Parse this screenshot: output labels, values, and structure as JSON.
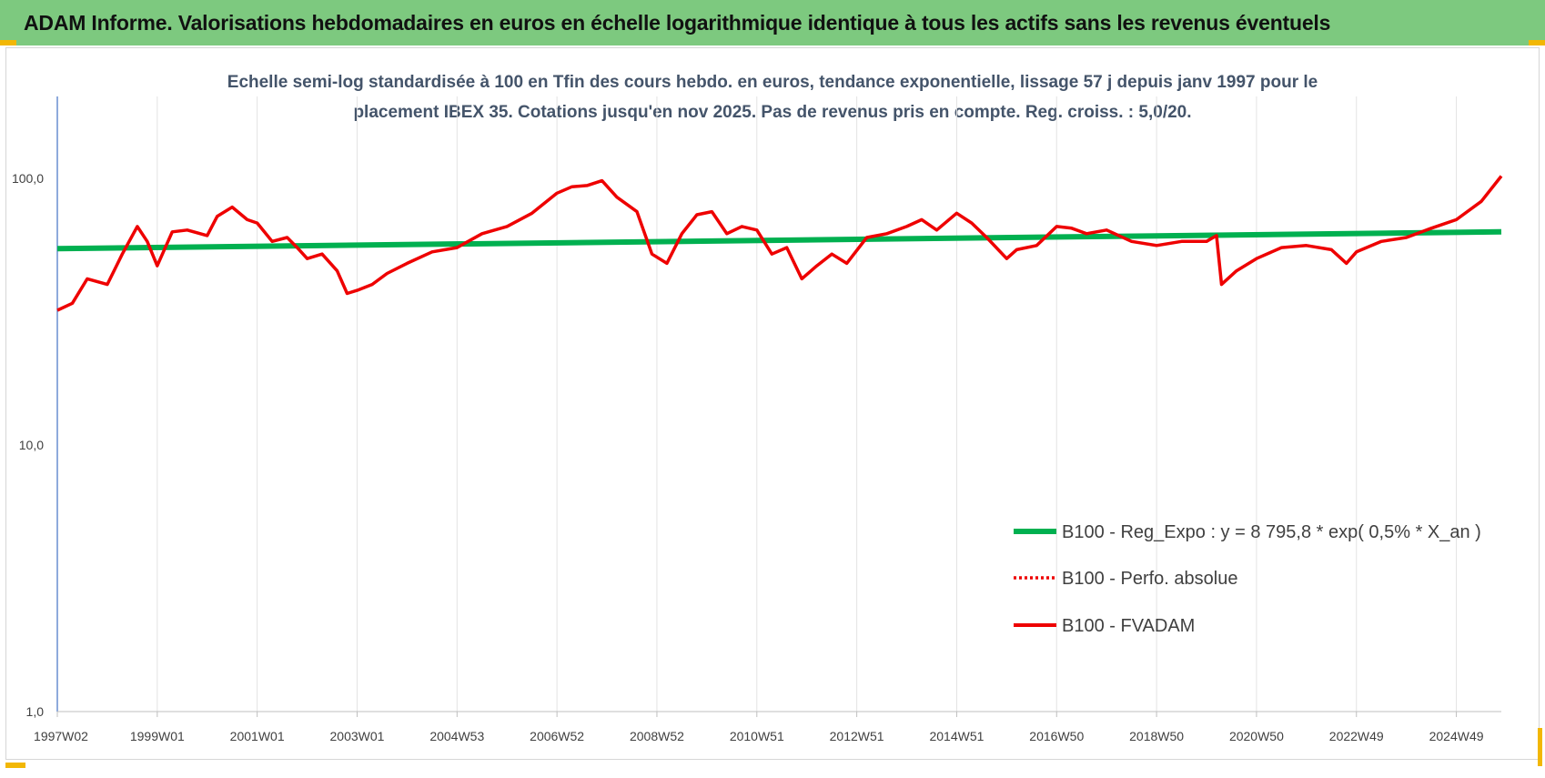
{
  "header": {
    "title": "ADAM Informe. Valorisations hebdomadaires en euros en échelle logarithmique identique à tous les actifs sans les revenus éventuels"
  },
  "colors": {
    "header_bg": "#7dc97f",
    "green": "#00b050",
    "red": "#ee0000",
    "title_text": "#44546a"
  },
  "chart_data": {
    "type": "line",
    "title_lines": [
      "Echelle semi-log standardisée à 100 en Tfin des cours hebdo. en euros, tendance exponentielle, lissage 57 j depuis janv 1997 pour le",
      "placement IBEX 35. Cotations jusqu'en nov 2025. Pas de revenus pris en compte. Reg. croiss. : 5,0/20."
    ],
    "y_scale": "log",
    "ylim": [
      1,
      200
    ],
    "y_ticks": [
      {
        "value": 1,
        "label": "1,0"
      },
      {
        "value": 10,
        "label": "10,0"
      },
      {
        "value": 100,
        "label": "100,0"
      }
    ],
    "xlim": [
      1997.0,
      2025.9
    ],
    "x_ticks": [
      {
        "x": 1997.0,
        "label": "1997W02"
      },
      {
        "x": 1999.0,
        "label": "1999W01"
      },
      {
        "x": 2001.0,
        "label": "2001W01"
      },
      {
        "x": 2003.0,
        "label": "2003W01"
      },
      {
        "x": 2005.0,
        "label": "2004W53"
      },
      {
        "x": 2007.0,
        "label": "2006W52"
      },
      {
        "x": 2009.0,
        "label": "2008W52"
      },
      {
        "x": 2011.0,
        "label": "2010W51"
      },
      {
        "x": 2013.0,
        "label": "2012W51"
      },
      {
        "x": 2015.0,
        "label": "2014W51"
      },
      {
        "x": 2017.0,
        "label": "2016W50"
      },
      {
        "x": 2019.0,
        "label": "2018W50"
      },
      {
        "x": 2021.0,
        "label": "2020W50"
      },
      {
        "x": 2023.0,
        "label": "2022W49"
      },
      {
        "x": 2025.0,
        "label": "2024W49"
      }
    ],
    "grid": "vertical",
    "legend_position": "bottom-right",
    "series": [
      {
        "name": "B100 - Reg_Expo : y = 8 795,8 * exp( 0,5% *  X_an )",
        "style": "solid-green",
        "x": [
          1997.0,
          2025.9
        ],
        "y": [
          54.5,
          63.0
        ]
      },
      {
        "name": "B100 - Perfo. absolue",
        "style": "dotted-red",
        "x": [],
        "y": []
      },
      {
        "name": "B100 - FVADAM",
        "style": "solid-red",
        "x": [
          1997.0,
          1997.3,
          1997.6,
          1998.0,
          1998.3,
          1998.6,
          1998.8,
          1999.0,
          1999.3,
          1999.6,
          2000.0,
          2000.2,
          2000.5,
          2000.8,
          2001.0,
          2001.3,
          2001.6,
          2001.8,
          2002.0,
          2002.3,
          2002.6,
          2002.8,
          2003.0,
          2003.3,
          2003.6,
          2004.0,
          2004.5,
          2005.0,
          2005.5,
          2006.0,
          2006.5,
          2007.0,
          2007.3,
          2007.6,
          2007.9,
          2008.2,
          2008.6,
          2008.9,
          2009.2,
          2009.5,
          2009.8,
          2010.1,
          2010.4,
          2010.7,
          2011.0,
          2011.3,
          2011.6,
          2011.9,
          2012.2,
          2012.5,
          2012.8,
          2013.2,
          2013.6,
          2014.0,
          2014.3,
          2014.6,
          2015.0,
          2015.3,
          2015.6,
          2016.0,
          2016.2,
          2016.6,
          2017.0,
          2017.3,
          2017.6,
          2018.0,
          2018.5,
          2019.0,
          2019.5,
          2020.0,
          2020.2,
          2020.3,
          2020.6,
          2021.0,
          2021.5,
          2022.0,
          2022.5,
          2022.8,
          2023.0,
          2023.5,
          2024.0,
          2024.5,
          2025.0,
          2025.5,
          2025.9
        ],
        "y": [
          32,
          34,
          42,
          40,
          52,
          66,
          58,
          47,
          63,
          64,
          61,
          72,
          78,
          70,
          68,
          58,
          60,
          55,
          50,
          52,
          45,
          37,
          38,
          40,
          44,
          48,
          53,
          55,
          62,
          66,
          74,
          88,
          93,
          94,
          98,
          85,
          75,
          52,
          48,
          62,
          73,
          75,
          62,
          66,
          64,
          52,
          55,
          42,
          47,
          52,
          48,
          60,
          62,
          66,
          70,
          64,
          74,
          68,
          60,
          50,
          54,
          56,
          66,
          65,
          62,
          64,
          58,
          56,
          58,
          58,
          61,
          40,
          45,
          50,
          55,
          56,
          54,
          48,
          53,
          58,
          60,
          65,
          70,
          82,
          102
        ]
      }
    ]
  }
}
